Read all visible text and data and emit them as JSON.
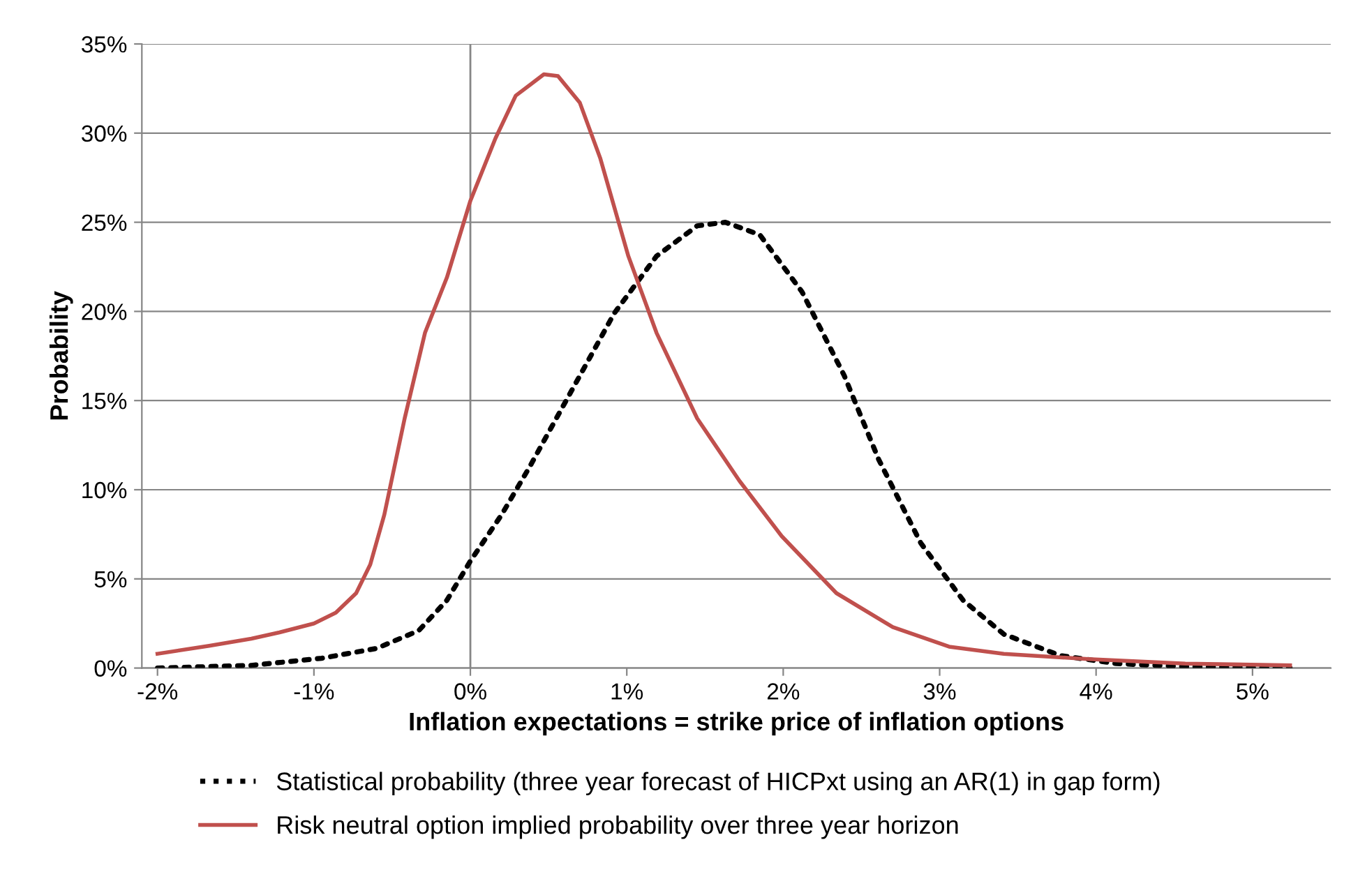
{
  "chart_data": {
    "type": "line",
    "xlabel": "Inflation expectations = strike price of inflation options",
    "ylabel": "Probability",
    "xlim": [
      -2.1,
      5.5
    ],
    "ylim": [
      0,
      35
    ],
    "xticks": [
      {
        "value": -2,
        "label": "-2%"
      },
      {
        "value": -1,
        "label": "-1%"
      },
      {
        "value": 0,
        "label": "0%"
      },
      {
        "value": 1,
        "label": "1%"
      },
      {
        "value": 2,
        "label": "2%"
      },
      {
        "value": 3,
        "label": "3%"
      },
      {
        "value": 4,
        "label": "4%"
      },
      {
        "value": 5,
        "label": "5%"
      }
    ],
    "yticks": [
      {
        "value": 0,
        "label": "0%"
      },
      {
        "value": 5,
        "label": "5%"
      },
      {
        "value": 10,
        "label": "10%"
      },
      {
        "value": 15,
        "label": "15%"
      },
      {
        "value": 20,
        "label": "20%"
      },
      {
        "value": 25,
        "label": "25%"
      },
      {
        "value": 30,
        "label": "30%"
      },
      {
        "value": 35,
        "label": "35%"
      }
    ],
    "grid": "y",
    "legend": "bottom",
    "marker": "none",
    "ref_lines": [
      {
        "axis": "x",
        "value": 0,
        "color": "#868686"
      }
    ],
    "series": [
      {
        "name": "Statistical probability (three year forecast of HICPxt using an AR(1) in gap form)",
        "color": "#000000",
        "line_style": "dotted",
        "x": [
          -2.0,
          -1.4,
          -0.95,
          -0.6,
          -0.33,
          -0.15,
          0,
          0.2,
          0.38,
          0.65,
          0.92,
          1.19,
          1.45,
          1.63,
          1.85,
          2.12,
          2.39,
          2.61,
          2.88,
          3.15,
          3.41,
          3.77,
          4.13,
          4.57,
          5.24
        ],
        "values": [
          0,
          0.15,
          0.55,
          1.1,
          2.1,
          3.8,
          6.0,
          8.6,
          11.3,
          15.6,
          19.9,
          23.1,
          24.8,
          25.0,
          24.3,
          21.1,
          16.4,
          11.7,
          7.0,
          3.8,
          1.9,
          0.7,
          0.25,
          0.08,
          0
        ]
      },
      {
        "name": "Risk neutral option implied probability over three year horizon",
        "color": "#c0504d",
        "line_style": "solid",
        "x": [
          -2.0,
          -1.67,
          -1.4,
          -1.22,
          -1.0,
          -0.86,
          -0.73,
          -0.64,
          -0.55,
          -0.42,
          -0.29,
          -0.15,
          0,
          0.16,
          0.29,
          0.47,
          0.56,
          0.7,
          0.83,
          1.01,
          1.19,
          1.45,
          1.72,
          1.99,
          2.34,
          2.7,
          3.06,
          3.41,
          3.95,
          4.57,
          5.24
        ],
        "values": [
          0.8,
          1.25,
          1.65,
          2.0,
          2.5,
          3.1,
          4.2,
          5.8,
          8.6,
          14,
          18.8,
          21.9,
          26.2,
          29.7,
          32.1,
          33.3,
          33.2,
          31.7,
          28.6,
          23.1,
          18.8,
          14.0,
          10.5,
          7.4,
          4.2,
          2.3,
          1.2,
          0.8,
          0.5,
          0.25,
          0.15
        ]
      }
    ]
  }
}
